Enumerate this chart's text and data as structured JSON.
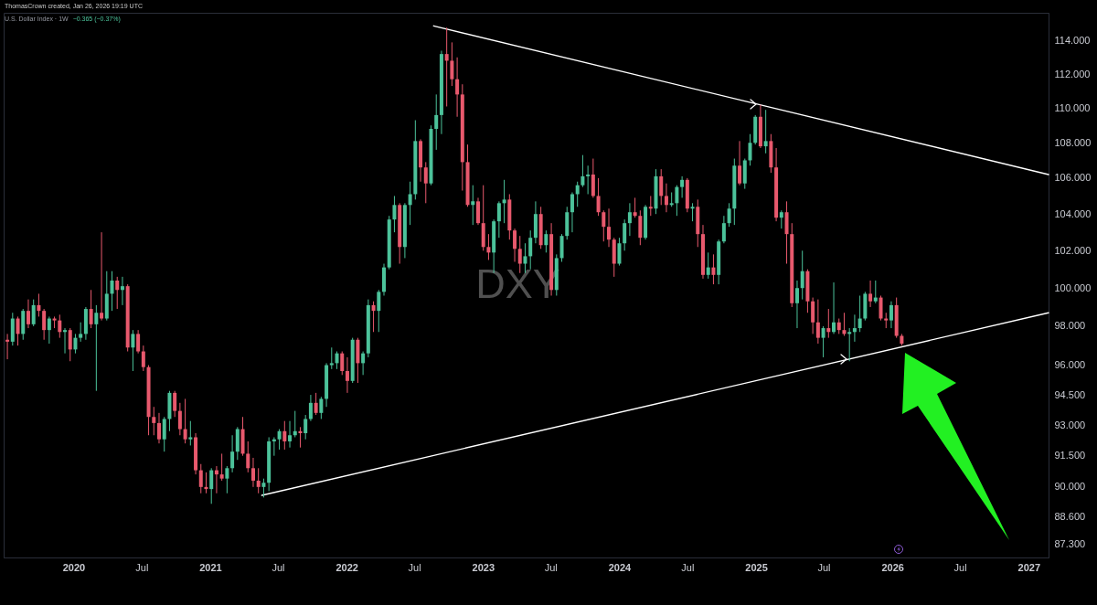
{
  "chart_data": {
    "type": "candlestick",
    "title": "U.S. Dollar Index · 1W",
    "subtitle": "−0.365 (−0.37%)",
    "annotations": [
      "ThomasCrown created, Jan 26, 2026 19:19 UTC",
      "DXY"
    ],
    "log": true,
    "xlim": [
      "2019-06-28",
      "2027-02-23"
    ],
    "xticks": [
      {
        "value": "2020-01-01",
        "label": "2020"
      },
      {
        "value": "2020-07-01",
        "label": "Jul"
      },
      {
        "value": "2021-01-01",
        "label": "2021"
      },
      {
        "value": "2021-07-01",
        "label": "Jul"
      },
      {
        "value": "2022-01-01",
        "label": "2022"
      },
      {
        "value": "2022-07-01",
        "label": "Jul"
      },
      {
        "value": "2023-01-01",
        "label": "2023"
      },
      {
        "value": "2023-07-01",
        "label": "Jul"
      },
      {
        "value": "2024-01-01",
        "label": "2024"
      },
      {
        "value": "2024-07-01",
        "label": "Jul"
      },
      {
        "value": "2025-01-01",
        "label": "2025"
      },
      {
        "value": "2025-07-01",
        "label": "Jul"
      },
      {
        "value": "2026-01-01",
        "label": "2026"
      },
      {
        "value": "2026-07-01",
        "label": "Jul"
      },
      {
        "value": "2027-01-01",
        "label": "2027"
      }
    ],
    "ylim": [
      86.7,
      115.7
    ],
    "yticks": [
      {
        "value": 114,
        "label": "114.000"
      },
      {
        "value": 112,
        "label": "112.000"
      },
      {
        "value": 110,
        "label": "110.000"
      },
      {
        "value": 108,
        "label": "108.000"
      },
      {
        "value": 106,
        "label": "106.000"
      },
      {
        "value": 104,
        "label": "104.000"
      },
      {
        "value": 102,
        "label": "102.000"
      },
      {
        "value": 100,
        "label": "100.000"
      },
      {
        "value": 98,
        "label": "98.000"
      },
      {
        "value": 96,
        "label": "96.000"
      },
      {
        "value": 94.5,
        "label": "94.500"
      },
      {
        "value": 93,
        "label": "93.000"
      },
      {
        "value": 91.5,
        "label": "91.500"
      },
      {
        "value": 90,
        "label": "90.000"
      },
      {
        "value": 88.6,
        "label": "88.600"
      },
      {
        "value": 87.3,
        "label": "87.300"
      }
    ],
    "x": [
      "2019-07-08",
      "2019-07-22",
      "2019-08-05",
      "2019-08-19",
      "2019-09-02",
      "2019-09-16",
      "2019-09-30",
      "2019-10-14",
      "2019-10-28",
      "2019-11-11",
      "2019-11-25",
      "2019-12-09",
      "2019-12-23",
      "2020-01-06",
      "2020-01-20",
      "2020-02-03",
      "2020-02-17",
      "2020-03-02",
      "2020-03-16",
      "2020-03-30",
      "2020-04-13",
      "2020-04-27",
      "2020-05-11",
      "2020-05-25",
      "2020-06-08",
      "2020-06-22",
      "2020-07-06",
      "2020-07-20",
      "2020-08-03",
      "2020-08-17",
      "2020-08-31",
      "2020-09-14",
      "2020-09-28",
      "2020-10-12",
      "2020-10-26",
      "2020-11-09",
      "2020-11-23",
      "2020-12-07",
      "2020-12-21",
      "2021-01-04",
      "2021-01-18",
      "2021-02-01",
      "2021-02-15",
      "2021-03-01",
      "2021-03-15",
      "2021-03-29",
      "2021-04-12",
      "2021-04-26",
      "2021-05-10",
      "2021-05-24",
      "2021-06-07",
      "2021-06-21",
      "2021-07-05",
      "2021-07-19",
      "2021-08-02",
      "2021-08-16",
      "2021-08-30",
      "2021-09-13",
      "2021-09-27",
      "2021-10-11",
      "2021-10-25",
      "2021-11-08",
      "2021-11-22",
      "2021-12-06",
      "2021-12-20",
      "2022-01-03",
      "2022-01-17",
      "2022-01-31",
      "2022-02-14",
      "2022-02-28",
      "2022-03-14",
      "2022-03-28",
      "2022-04-11",
      "2022-04-25",
      "2022-05-09",
      "2022-05-23",
      "2022-06-06",
      "2022-06-20",
      "2022-07-04",
      "2022-07-18",
      "2022-08-01",
      "2022-08-15",
      "2022-08-29",
      "2022-09-12",
      "2022-09-26",
      "2022-10-10",
      "2022-10-24",
      "2022-11-07",
      "2022-11-21",
      "2022-12-05",
      "2022-12-19",
      "2023-01-02",
      "2023-01-16",
      "2023-01-30",
      "2023-02-13",
      "2023-02-27",
      "2023-03-13",
      "2023-03-27",
      "2023-04-10",
      "2023-04-24",
      "2023-05-08",
      "2023-05-22",
      "2023-06-05",
      "2023-06-19",
      "2023-07-03",
      "2023-07-17",
      "2023-07-31",
      "2023-08-14",
      "2023-08-28",
      "2023-09-11",
      "2023-09-25",
      "2023-10-09",
      "2023-10-23",
      "2023-11-06",
      "2023-11-20",
      "2023-12-04",
      "2023-12-18",
      "2024-01-01",
      "2024-01-15",
      "2024-01-29",
      "2024-02-12",
      "2024-02-26",
      "2024-03-11",
      "2024-03-25",
      "2024-04-08",
      "2024-04-22",
      "2024-05-06",
      "2024-05-20",
      "2024-06-03",
      "2024-06-17",
      "2024-07-01",
      "2024-07-15",
      "2024-07-29",
      "2024-08-12",
      "2024-08-26",
      "2024-09-09",
      "2024-09-23",
      "2024-10-07",
      "2024-10-21",
      "2024-11-04",
      "2024-11-18",
      "2024-12-02",
      "2024-12-16",
      "2024-12-30",
      "2025-01-13",
      "2025-01-27",
      "2025-02-10",
      "2025-02-24",
      "2025-03-10",
      "2025-03-24",
      "2025-04-07",
      "2025-04-21",
      "2025-05-05",
      "2025-05-19",
      "2025-06-02",
      "2025-06-16",
      "2025-06-30",
      "2025-07-14",
      "2025-07-28",
      "2025-08-11",
      "2025-08-25",
      "2025-09-08",
      "2025-09-22",
      "2025-10-06",
      "2025-10-20",
      "2025-11-03",
      "2025-11-17",
      "2025-12-01",
      "2025-12-15",
      "2025-12-29",
      "2026-01-12",
      "2026-01-26"
    ],
    "ohlc": [
      [
        97.3,
        97.6,
        96.3,
        97.2
      ],
      [
        97.2,
        98.7,
        97.0,
        98.4
      ],
      [
        98.4,
        98.5,
        97.0,
        97.6
      ],
      [
        97.6,
        98.9,
        97.3,
        98.8
      ],
      [
        98.8,
        99.4,
        97.9,
        98.1
      ],
      [
        98.1,
        99.4,
        98.0,
        99.1
      ],
      [
        99.1,
        99.7,
        98.5,
        98.8
      ],
      [
        98.8,
        98.9,
        97.3,
        97.8
      ],
      [
        97.8,
        98.5,
        97.1,
        98.4
      ],
      [
        98.4,
        98.5,
        97.9,
        98.3
      ],
      [
        98.3,
        98.6,
        97.4,
        97.7
      ],
      [
        97.7,
        97.9,
        96.6,
        97.8
      ],
      [
        97.8,
        97.9,
        96.2,
        96.8
      ],
      [
        96.8,
        97.6,
        96.6,
        97.4
      ],
      [
        97.4,
        98.2,
        97.2,
        97.6
      ],
      [
        97.6,
        99.0,
        97.3,
        98.9
      ],
      [
        98.9,
        99.9,
        97.9,
        98.1
      ],
      [
        98.1,
        99.1,
        94.7,
        98.7
      ],
      [
        98.7,
        103.0,
        98.3,
        98.4
      ],
      [
        98.4,
        100.9,
        98.3,
        99.7
      ],
      [
        99.7,
        100.9,
        98.8,
        100.4
      ],
      [
        100.4,
        100.6,
        98.9,
        99.9
      ],
      [
        99.9,
        100.6,
        99.1,
        100.1
      ],
      [
        100.1,
        100.2,
        96.7,
        96.9
      ],
      [
        96.9,
        97.8,
        95.7,
        97.6
      ],
      [
        97.6,
        97.8,
        96.6,
        96.7
      ],
      [
        96.7,
        97.0,
        95.7,
        95.9
      ],
      [
        95.9,
        96.0,
        92.5,
        93.4
      ],
      [
        93.4,
        93.9,
        92.5,
        93.1
      ],
      [
        93.1,
        93.6,
        92.1,
        92.3
      ],
      [
        92.3,
        93.4,
        91.7,
        93.3
      ],
      [
        93.3,
        94.7,
        92.7,
        94.6
      ],
      [
        94.6,
        94.7,
        93.4,
        93.7
      ],
      [
        93.7,
        94.1,
        92.5,
        92.8
      ],
      [
        92.8,
        94.3,
        92.1,
        92.3
      ],
      [
        92.3,
        93.2,
        92.0,
        92.4
      ],
      [
        92.4,
        92.6,
        90.6,
        90.8
      ],
      [
        90.8,
        91.1,
        89.7,
        90.0
      ],
      [
        90.0,
        90.7,
        89.7,
        89.9
      ],
      [
        89.9,
        90.9,
        89.2,
        90.8
      ],
      [
        90.8,
        91.0,
        89.7,
        90.6
      ],
      [
        90.6,
        91.6,
        90.3,
        90.4
      ],
      [
        90.4,
        91.0,
        89.7,
        90.9
      ],
      [
        90.9,
        92.5,
        90.7,
        91.7
      ],
      [
        91.7,
        92.9,
        91.3,
        92.8
      ],
      [
        92.8,
        93.4,
        91.5,
        91.6
      ],
      [
        91.6,
        92.2,
        90.7,
        90.9
      ],
      [
        90.9,
        91.4,
        90.0,
        90.3
      ],
      [
        90.3,
        90.9,
        89.7,
        90.0
      ],
      [
        90.0,
        90.4,
        89.5,
        90.2
      ],
      [
        90.2,
        92.4,
        89.8,
        92.2
      ],
      [
        92.2,
        92.4,
        91.5,
        92.3
      ],
      [
        92.3,
        92.8,
        91.8,
        92.7
      ],
      [
        92.7,
        93.2,
        91.8,
        92.2
      ],
      [
        92.2,
        93.2,
        91.9,
        92.5
      ],
      [
        92.5,
        93.7,
        92.4,
        92.7
      ],
      [
        92.7,
        92.9,
        91.9,
        92.6
      ],
      [
        92.6,
        93.5,
        92.3,
        93.3
      ],
      [
        93.3,
        94.5,
        93.2,
        94.1
      ],
      [
        94.1,
        94.6,
        93.5,
        93.6
      ],
      [
        93.6,
        94.4,
        93.3,
        94.3
      ],
      [
        94.3,
        96.1,
        93.9,
        96.0
      ],
      [
        96.0,
        96.9,
        95.8,
        96.1
      ],
      [
        96.1,
        96.7,
        95.8,
        96.6
      ],
      [
        96.6,
        96.7,
        95.5,
        95.7
      ],
      [
        95.7,
        96.4,
        94.6,
        95.2
      ],
      [
        95.2,
        97.4,
        95.1,
        97.3
      ],
      [
        97.3,
        97.4,
        95.1,
        96.1
      ],
      [
        96.1,
        96.7,
        95.5,
        96.6
      ],
      [
        96.6,
        99.4,
        96.4,
        99.1
      ],
      [
        99.1,
        99.3,
        97.7,
        98.8
      ],
      [
        98.8,
        99.9,
        97.7,
        99.8
      ],
      [
        99.8,
        101.3,
        99.6,
        101.1
      ],
      [
        101.1,
        103.9,
        101.0,
        103.7
      ],
      [
        103.7,
        105.0,
        103.0,
        104.5
      ],
      [
        104.5,
        104.6,
        101.3,
        102.2
      ],
      [
        102.2,
        104.6,
        101.6,
        104.5
      ],
      [
        104.5,
        105.8,
        103.4,
        105.1
      ],
      [
        105.1,
        109.3,
        104.8,
        108.1
      ],
      [
        108.1,
        108.2,
        105.8,
        106.6
      ],
      [
        106.6,
        106.9,
        104.6,
        105.7
      ],
      [
        105.7,
        109.0,
        105.6,
        108.8
      ],
      [
        108.8,
        110.8,
        107.6,
        109.6
      ],
      [
        109.6,
        113.4,
        108.5,
        113.2
      ],
      [
        113.2,
        114.8,
        110.1,
        112.8
      ],
      [
        112.8,
        113.9,
        111.3,
        111.7
      ],
      [
        111.7,
        113.0,
        109.5,
        110.8
      ],
      [
        110.8,
        111.4,
        105.3,
        106.9
      ],
      [
        106.9,
        107.9,
        104.4,
        104.5
      ],
      [
        104.5,
        105.6,
        103.4,
        104.7
      ],
      [
        104.7,
        104.9,
        103.4,
        103.5
      ],
      [
        103.5,
        105.6,
        102.0,
        102.2
      ],
      [
        102.2,
        102.9,
        101.5,
        101.9
      ],
      [
        101.9,
        103.7,
        100.8,
        103.6
      ],
      [
        103.6,
        104.7,
        102.7,
        104.6
      ],
      [
        104.6,
        105.9,
        103.5,
        104.8
      ],
      [
        104.8,
        105.1,
        102.6,
        103.1
      ],
      [
        103.1,
        103.2,
        101.4,
        102.1
      ],
      [
        102.1,
        102.8,
        100.8,
        101.3
      ],
      [
        101.3,
        102.4,
        100.8,
        101.7
      ],
      [
        101.7,
        103.1,
        101.0,
        102.7
      ],
      [
        102.7,
        104.7,
        102.4,
        104.0
      ],
      [
        104.0,
        104.4,
        102.1,
        102.3
      ],
      [
        102.3,
        103.1,
        101.9,
        102.9
      ],
      [
        102.9,
        103.5,
        99.6,
        99.9
      ],
      [
        99.9,
        101.8,
        99.6,
        101.6
      ],
      [
        101.6,
        102.9,
        101.4,
        102.8
      ],
      [
        102.8,
        104.4,
        102.6,
        104.1
      ],
      [
        104.1,
        105.2,
        103.0,
        105.1
      ],
      [
        105.1,
        105.8,
        104.4,
        105.6
      ],
      [
        105.6,
        107.3,
        105.5,
        106.1
      ],
      [
        106.1,
        106.7,
        105.1,
        106.2
      ],
      [
        106.2,
        107.1,
        104.9,
        105.0
      ],
      [
        105.0,
        106.0,
        103.9,
        104.1
      ],
      [
        104.1,
        104.2,
        102.5,
        103.3
      ],
      [
        103.3,
        104.3,
        102.2,
        102.6
      ],
      [
        102.6,
        102.7,
        100.6,
        101.3
      ],
      [
        101.3,
        102.7,
        101.2,
        102.4
      ],
      [
        102.4,
        103.7,
        102.0,
        103.5
      ],
      [
        103.5,
        104.6,
        102.8,
        104.1
      ],
      [
        104.1,
        104.9,
        103.8,
        103.9
      ],
      [
        103.9,
        104.2,
        102.3,
        102.7
      ],
      [
        102.7,
        104.5,
        102.6,
        104.4
      ],
      [
        104.4,
        105.0,
        103.9,
        104.3
      ],
      [
        104.3,
        106.5,
        104.0,
        106.1
      ],
      [
        106.1,
        106.5,
        104.5,
        105.0
      ],
      [
        105.0,
        105.7,
        104.1,
        104.5
      ],
      [
        104.5,
        105.2,
        104.4,
        104.6
      ],
      [
        104.6,
        105.6,
        103.9,
        105.5
      ],
      [
        105.5,
        106.1,
        104.9,
        105.9
      ],
      [
        105.9,
        106.0,
        104.1,
        104.3
      ],
      [
        104.3,
        104.6,
        103.6,
        104.4
      ],
      [
        104.4,
        104.8,
        102.2,
        102.9
      ],
      [
        102.9,
        103.4,
        100.5,
        100.7
      ],
      [
        100.7,
        101.9,
        100.5,
        101.1
      ],
      [
        101.1,
        101.8,
        100.2,
        100.7
      ],
      [
        100.7,
        102.6,
        100.2,
        102.5
      ],
      [
        102.5,
        103.9,
        102.4,
        103.5
      ],
      [
        103.5,
        104.6,
        103.3,
        104.3
      ],
      [
        104.3,
        107.1,
        103.4,
        106.7
      ],
      [
        106.7,
        108.1,
        105.6,
        105.7
      ],
      [
        105.7,
        107.1,
        105.4,
        107.0
      ],
      [
        107.0,
        108.5,
        106.7,
        108.0
      ],
      [
        108.0,
        109.6,
        107.9,
        109.5
      ],
      [
        109.5,
        110.2,
        107.7,
        107.8
      ],
      [
        107.8,
        109.9,
        107.4,
        108.1
      ],
      [
        108.1,
        108.5,
        106.3,
        106.6
      ],
      [
        106.6,
        107.7,
        103.6,
        103.8
      ],
      [
        103.8,
        104.2,
        103.2,
        104.1
      ],
      [
        104.1,
        104.7,
        101.3,
        102.9
      ],
      [
        102.9,
        103.5,
        99.0,
        99.2
      ],
      [
        99.2,
        100.4,
        97.9,
        100.0
      ],
      [
        100.0,
        102.0,
        99.4,
        100.9
      ],
      [
        100.9,
        101.0,
        98.7,
        99.3
      ],
      [
        99.3,
        99.5,
        97.6,
        98.2
      ],
      [
        98.2,
        99.4,
        97.1,
        97.4
      ],
      [
        97.4,
        98.0,
        96.4,
        97.9
      ],
      [
        97.9,
        98.9,
        97.4,
        97.7
      ],
      [
        97.7,
        100.3,
        97.6,
        98.2
      ],
      [
        98.2,
        98.4,
        97.6,
        97.8
      ],
      [
        97.8,
        98.7,
        97.5,
        97.6
      ],
      [
        97.6,
        97.9,
        96.2,
        97.7
      ],
      [
        97.7,
        98.6,
        97.2,
        97.9
      ],
      [
        97.9,
        99.6,
        97.7,
        98.4
      ],
      [
        98.4,
        99.8,
        98.3,
        99.7
      ],
      [
        99.7,
        100.4,
        99.0,
        99.3
      ],
      [
        99.3,
        100.4,
        99.2,
        99.5
      ],
      [
        99.5,
        99.6,
        98.3,
        98.4
      ],
      [
        98.4,
        98.7,
        97.9,
        98.3
      ],
      [
        98.3,
        99.3,
        97.9,
        99.1
      ],
      [
        99.1,
        99.5,
        97.4,
        97.5
      ],
      [
        97.5,
        97.6,
        97.0,
        97.1
      ]
    ],
    "colors": [
      "#e8596d",
      "#4cc29a",
      "#e8596d",
      "#4cc29a",
      "#e8596d",
      "#4cc29a",
      "#e8596d",
      "#e8596d",
      "#4cc29a",
      "#e8596d",
      "#e8596d",
      "#4cc29a",
      "#e8596d",
      "#4cc29a",
      "#4cc29a",
      "#4cc29a",
      "#e8596d",
      "#4cc29a",
      "#e8596d",
      "#4cc29a",
      "#4cc29a",
      "#e8596d",
      "#4cc29a",
      "#e8596d",
      "#4cc29a",
      "#e8596d",
      "#e8596d",
      "#e8596d",
      "#e8596d",
      "#e8596d",
      "#4cc29a",
      "#4cc29a",
      "#e8596d",
      "#e8596d",
      "#e8596d",
      "#4cc29a",
      "#e8596d",
      "#e8596d",
      "#e8596d",
      "#4cc29a",
      "#e8596d",
      "#e8596d",
      "#4cc29a",
      "#4cc29a",
      "#4cc29a",
      "#e8596d",
      "#e8596d",
      "#e8596d",
      "#e8596d",
      "#4cc29a",
      "#4cc29a",
      "#4cc29a",
      "#4cc29a",
      "#e8596d",
      "#4cc29a",
      "#4cc29a",
      "#e8596d",
      "#4cc29a",
      "#4cc29a",
      "#e8596d",
      "#4cc29a",
      "#4cc29a",
      "#4cc29a",
      "#4cc29a",
      "#e8596d",
      "#e8596d",
      "#4cc29a",
      "#e8596d",
      "#4cc29a",
      "#4cc29a",
      "#e8596d",
      "#4cc29a",
      "#4cc29a",
      "#4cc29a",
      "#4cc29a",
      "#e8596d",
      "#4cc29a",
      "#4cc29a",
      "#4cc29a",
      "#e8596d",
      "#e8596d",
      "#4cc29a",
      "#4cc29a",
      "#4cc29a",
      "#e8596d",
      "#e8596d",
      "#e8596d",
      "#e8596d",
      "#e8596d",
      "#4cc29a",
      "#e8596d",
      "#e8596d",
      "#e8596d",
      "#4cc29a",
      "#4cc29a",
      "#4cc29a",
      "#e8596d",
      "#e8596d",
      "#e8596d",
      "#4cc29a",
      "#4cc29a",
      "#4cc29a",
      "#e8596d",
      "#4cc29a",
      "#e8596d",
      "#4cc29a",
      "#4cc29a",
      "#4cc29a",
      "#4cc29a",
      "#4cc29a",
      "#4cc29a",
      "#4cc29a",
      "#e8596d",
      "#e8596d",
      "#e8596d",
      "#e8596d",
      "#e8596d",
      "#4cc29a",
      "#4cc29a",
      "#4cc29a",
      "#e8596d",
      "#e8596d",
      "#4cc29a",
      "#e8596d",
      "#4cc29a",
      "#e8596d",
      "#e8596d",
      "#4cc29a",
      "#4cc29a",
      "#4cc29a",
      "#e8596d",
      "#4cc29a",
      "#e8596d",
      "#e8596d",
      "#4cc29a",
      "#e8596d",
      "#4cc29a",
      "#4cc29a",
      "#4cc29a",
      "#4cc29a",
      "#e8596d",
      "#4cc29a",
      "#4cc29a",
      "#4cc29a",
      "#e8596d",
      "#4cc29a",
      "#e8596d",
      "#e8596d",
      "#4cc29a",
      "#e8596d",
      "#e8596d",
      "#4cc29a",
      "#4cc29a",
      "#e8596d",
      "#e8596d",
      "#e8596d",
      "#4cc29a",
      "#e8596d",
      "#4cc29a",
      "#e8596d",
      "#e8596d",
      "#4cc29a",
      "#4cc29a",
      "#4cc29a",
      "#4cc29a",
      "#e8596d",
      "#4cc29a",
      "#e8596d",
      "#e8596d",
      "#4cc29a",
      "#e8596d",
      "#e8596d"
    ],
    "series": [
      {
        "type": "line",
        "color": "#ffffff",
        "x": [
          "2022-08-22",
          "2027-02-23"
        ],
        "values": [
          114.9,
          106.2
        ]
      },
      {
        "type": "line",
        "color": "#ffffff",
        "x": [
          "2021-05-19",
          "2027-02-23"
        ],
        "values": [
          89.6,
          98.7
        ]
      }
    ]
  }
}
